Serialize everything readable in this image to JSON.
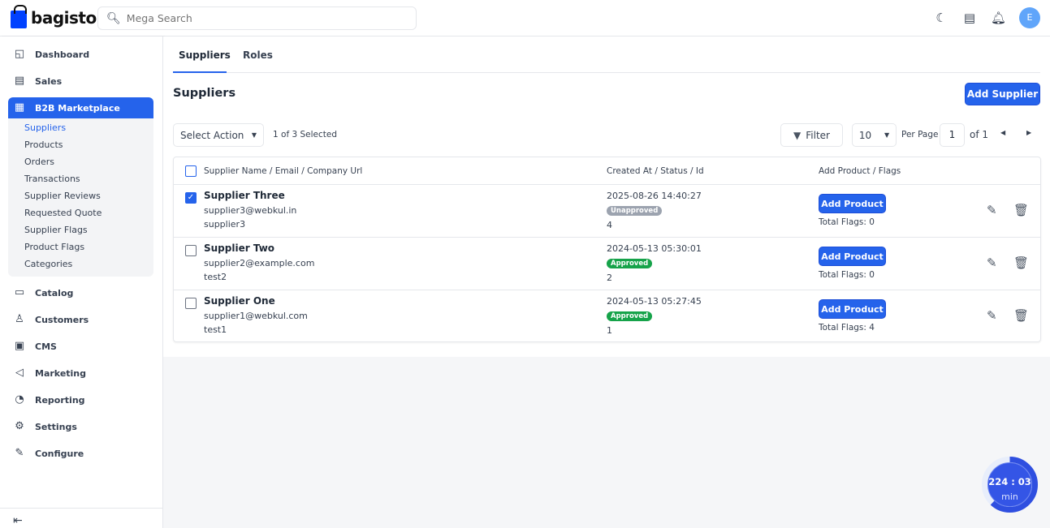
{
  "header": {
    "brand": "bagisto",
    "search_placeholder": "Mega Search",
    "avatar_letter": "E"
  },
  "sidebar": {
    "items": [
      {
        "label": "Dashboard",
        "icon": "dashboard-icon"
      },
      {
        "label": "Sales",
        "icon": "sales-icon"
      },
      {
        "label": "B2B Marketplace",
        "icon": "store-icon",
        "active": true
      },
      {
        "label": "Catalog",
        "icon": "catalog-icon"
      },
      {
        "label": "Customers",
        "icon": "customers-icon"
      },
      {
        "label": "CMS",
        "icon": "cms-icon"
      },
      {
        "label": "Marketing",
        "icon": "megaphone-icon"
      },
      {
        "label": "Reporting",
        "icon": "reporting-icon"
      },
      {
        "label": "Settings",
        "icon": "gear-icon"
      },
      {
        "label": "Configure",
        "icon": "wrench-icon"
      }
    ],
    "submenu": [
      "Suppliers",
      "Products",
      "Orders",
      "Transactions",
      "Supplier Reviews",
      "Requested Quote",
      "Supplier Flags",
      "Product Flags",
      "Categories"
    ]
  },
  "tabs": [
    "Suppliers",
    "Roles"
  ],
  "page_title": "Suppliers",
  "add_supplier": "Add Supplier",
  "toolbar": {
    "select_action": "Select Action",
    "selected": "1 of 3 Selected",
    "filter": "Filter",
    "per_page_value": "10",
    "per_page_label": "Per Page",
    "page": "1",
    "of": "of 1"
  },
  "table": {
    "headers": [
      "Supplier Name / Email / Company Url",
      "Created At / Status / Id",
      "Add Product / Flags"
    ],
    "rows": [
      {
        "checked": true,
        "name": "Supplier Three",
        "email": "supplier3@webkul.in",
        "url": "supplier3",
        "created": "2025-08-26 14:40:27",
        "status": "Unapproved",
        "id": "4",
        "add": "Add Product",
        "flags": "Total Flags: 0"
      },
      {
        "checked": false,
        "name": "Supplier Two",
        "email": "supplier2@example.com",
        "url": "test2",
        "created": "2024-05-13 05:30:01",
        "status": "Approved",
        "id": "2",
        "add": "Add Product",
        "flags": "Total Flags: 0"
      },
      {
        "checked": false,
        "name": "Supplier One",
        "email": "supplier1@webkul.com",
        "url": "test1",
        "created": "2024-05-13 05:27:45",
        "status": "Approved",
        "id": "1",
        "add": "Add Product",
        "flags": "Total Flags: 4"
      }
    ]
  },
  "colors": {
    "accent": "#2563eb",
    "approved": "#16a34a",
    "unapproved": "#9ca3af"
  },
  "timer": {
    "time": "224 : 03",
    "unit": "min",
    "progress": 0.62
  }
}
